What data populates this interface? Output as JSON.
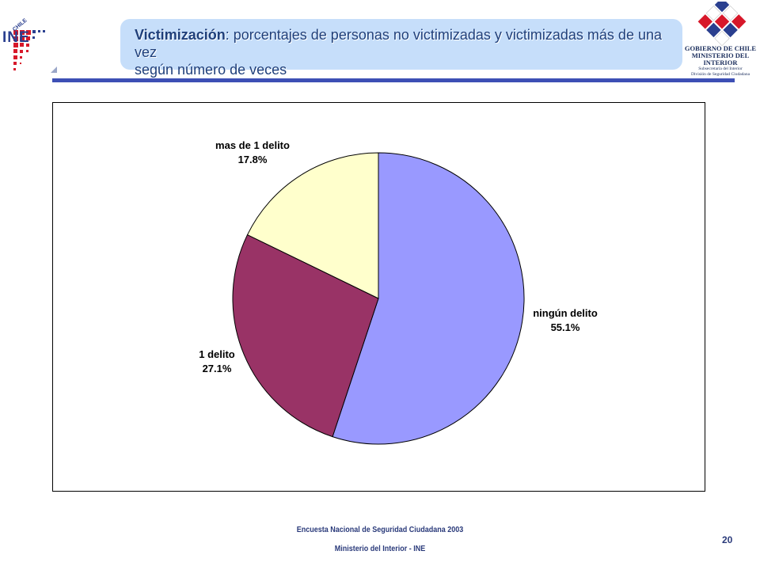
{
  "header": {
    "title_bold": "Victimización",
    "title_rest": ": porcentajes de personas no victimizadas y victimizadas más de una vez",
    "title_line2": "según número de veces"
  },
  "logos": {
    "ine": {
      "name": "ine-logo",
      "text": "INE",
      "country": "CHILE"
    },
    "gobierno": {
      "name": "gobierno-chile-logo",
      "line1": "GOBIERNO DE CHILE",
      "line2": "MINISTERIO DEL INTERIOR",
      "line3": "Subsecretaría del Interior",
      "line4": "División de Seguridad Ciudadana"
    }
  },
  "colors": {
    "title_box": "#c6defa",
    "rule": "#3d4fb5",
    "title_text": "#1f3f7a"
  },
  "chart_data": {
    "type": "pie",
    "title": "",
    "slices": [
      {
        "label": "ningún delito",
        "value": 55.1,
        "value_label": "55.1%",
        "color": "#9999ff"
      },
      {
        "label": "1 delito",
        "value": 27.1,
        "value_label": "27.1%",
        "color": "#993366"
      },
      {
        "label": "mas de 1 delito",
        "value": 17.8,
        "value_label": "17.8%",
        "color": "#ffffcc"
      }
    ],
    "start": "top",
    "direction": "clockwise",
    "legend": "none"
  },
  "footer": {
    "line1": "Encuesta Nacional de Seguridad Ciudadana 2003",
    "line2": "Ministerio del Interior - INE",
    "page_number": "20"
  }
}
